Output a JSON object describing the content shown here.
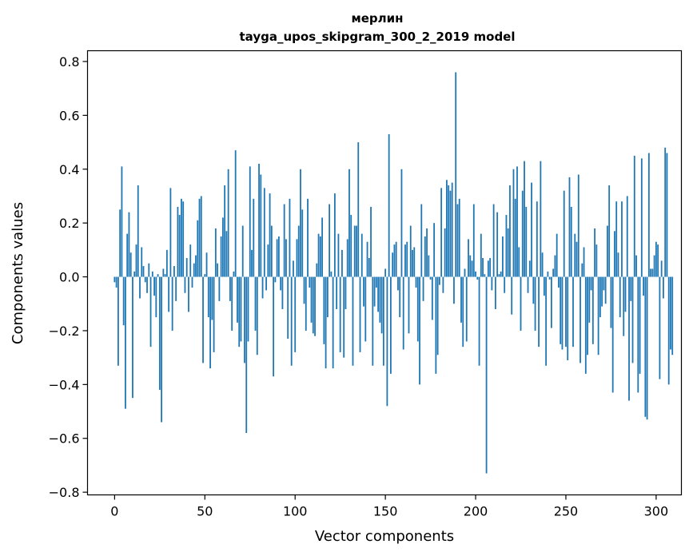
{
  "chart_data": {
    "type": "bar",
    "title": "мерлин",
    "subtitle": "tayga_upos_skipgram_300_2_2019 model",
    "xlabel": "Vector components",
    "ylabel": "Components values",
    "xlim": [
      -15,
      314
    ],
    "ylim": [
      -0.81,
      0.84
    ],
    "xticks": [
      0,
      50,
      100,
      150,
      200,
      250,
      300
    ],
    "yticks": [
      -0.8,
      -0.6,
      -0.4,
      -0.2,
      0.0,
      0.2,
      0.4,
      0.6,
      0.8
    ],
    "ytick_labels": [
      "−0.8",
      "−0.6",
      "−0.4",
      "−0.2",
      "0.0",
      "0.2",
      "0.4",
      "0.6",
      "0.8"
    ],
    "xtick_labels": [
      "0",
      "50",
      "100",
      "150",
      "200",
      "250",
      "300"
    ],
    "grid": false,
    "bar_color": "#1f77b4",
    "values": [
      -0.02,
      -0.04,
      -0.33,
      0.25,
      0.41,
      -0.18,
      -0.49,
      0.16,
      0.24,
      0.09,
      -0.45,
      0.02,
      0.12,
      0.34,
      -0.08,
      0.11,
      0.04,
      -0.02,
      -0.06,
      0.05,
      -0.26,
      0.02,
      -0.07,
      -0.15,
      0.01,
      -0.42,
      -0.54,
      0.03,
      0.01,
      0.1,
      -0.13,
      0.33,
      -0.2,
      0.04,
      -0.09,
      0.26,
      0.23,
      0.29,
      0.28,
      -0.06,
      0.07,
      -0.13,
      0.12,
      -0.04,
      0.05,
      0.08,
      0.21,
      0.29,
      0.3,
      -0.32,
      0.01,
      0.09,
      -0.15,
      -0.34,
      -0.16,
      -0.28,
      0.18,
      0.05,
      -0.09,
      0.15,
      0.22,
      0.34,
      0.17,
      0.4,
      -0.09,
      -0.2,
      0.02,
      0.47,
      -0.17,
      -0.26,
      -0.24,
      0.19,
      -0.32,
      -0.58,
      -0.24,
      0.41,
      0.1,
      0.29,
      -0.2,
      -0.29,
      0.42,
      0.38,
      -0.08,
      0.33,
      -0.05,
      0.12,
      0.31,
      0.19,
      -0.37,
      -0.02,
      0.14,
      0.15,
      -0.05,
      -0.12,
      0.27,
      0.14,
      -0.23,
      0.29,
      -0.33,
      0.06,
      -0.28,
      0.14,
      0.19,
      0.4,
      0.25,
      -0.1,
      -0.2,
      0.29,
      -0.04,
      -0.17,
      -0.21,
      -0.22,
      0.05,
      0.16,
      0.15,
      0.22,
      -0.25,
      -0.34,
      -0.15,
      0.27,
      0.02,
      -0.34,
      0.31,
      -0.12,
      0.16,
      -0.28,
      0.1,
      -0.3,
      -0.12,
      0.14,
      0.4,
      0.23,
      -0.33,
      0.19,
      0.19,
      0.5,
      -0.28,
      0.16,
      -0.11,
      -0.24,
      0.13,
      0.07,
      0.26,
      -0.33,
      -0.11,
      -0.04,
      -0.13,
      -0.17,
      -0.21,
      -0.33,
      0.03,
      -0.48,
      0.53,
      -0.36,
      0.09,
      0.12,
      0.13,
      -0.05,
      -0.15,
      0.4,
      -0.27,
      0.12,
      0.13,
      -0.21,
      0.19,
      0.1,
      0.11,
      -0.04,
      -0.24,
      -0.4,
      0.27,
      -0.09,
      0.15,
      0.18,
      0.08,
      -0.01,
      -0.16,
      0.2,
      -0.36,
      -0.29,
      -0.03,
      0.33,
      -0.06,
      0.18,
      0.36,
      0.34,
      0.32,
      0.35,
      -0.1,
      0.76,
      0.27,
      0.29,
      -0.17,
      -0.26,
      0.03,
      -0.24,
      0.14,
      0.08,
      0.06,
      0.27,
      0.02,
      -0.01,
      -0.33,
      0.16,
      0.07,
      0.01,
      -0.73,
      0.06,
      0.07,
      -0.05,
      0.27,
      -0.12,
      0.24,
      0.01,
      0.02,
      0.15,
      -0.06,
      0.23,
      0.18,
      0.34,
      -0.14,
      0.4,
      0.29,
      0.41,
      0.11,
      -0.2,
      0.32,
      0.43,
      0.26,
      -0.06,
      0.06,
      0.35,
      -0.1,
      -0.2,
      0.28,
      -0.26,
      0.43,
      0.09,
      -0.07,
      -0.33,
      0.02,
      -0.01,
      -0.19,
      0.03,
      0.08,
      0.16,
      -0.04,
      -0.25,
      -0.27,
      0.32,
      -0.26,
      -0.31,
      0.37,
      0.26,
      -0.26,
      0.16,
      0.13,
      0.38,
      -0.32,
      0.05,
      0.11,
      -0.36,
      -0.29,
      -0.17,
      -0.05,
      -0.25,
      0.18,
      0.12,
      -0.29,
      -0.15,
      -0.11,
      -0.05,
      -0.1,
      0.19,
      0.34,
      -0.19,
      -0.43,
      0.17,
      0.28,
      0.09,
      -0.15,
      0.28,
      -0.22,
      -0.13,
      0.3,
      -0.46,
      -0.09,
      -0.32,
      0.45,
      0.08,
      -0.43,
      -0.36,
      0.44,
      -0.07,
      -0.52,
      -0.53,
      0.46,
      0.03,
      0.03,
      0.08,
      0.13,
      0.12,
      -0.38,
      0.06,
      -0.08,
      0.48,
      0.46,
      -0.4,
      -0.27,
      -0.29
    ]
  }
}
